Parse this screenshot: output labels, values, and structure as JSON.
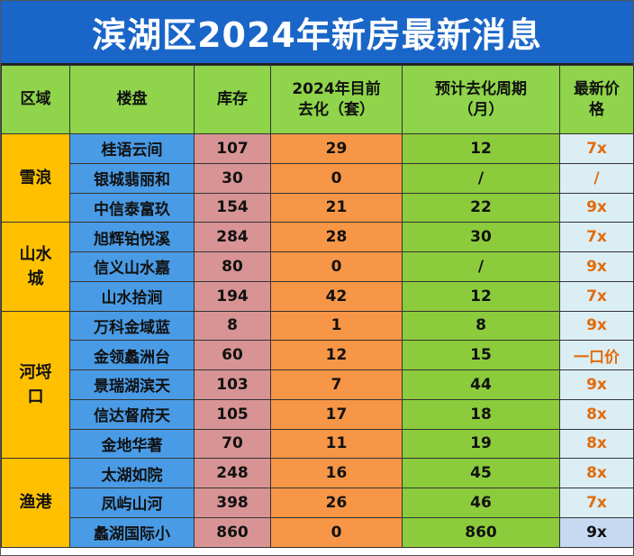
{
  "title": "滨湖区2024年新房最新消息",
  "headers": {
    "area": "区域",
    "project": "楼盘",
    "stock": "库存",
    "sold_line1": "2024年目前",
    "sold_line2": "去化（套）",
    "cycle_line1": "预计去化周期",
    "cycle_line2": "（月）",
    "price_line1": "最新价",
    "price_line2": "格"
  },
  "groups": [
    {
      "area_lines": [
        "雪浪"
      ],
      "rows": [
        {
          "project": "桂语云间",
          "stock": "107",
          "sold": "29",
          "cycle": "12",
          "price": "7x"
        },
        {
          "project": "银城翡丽和",
          "stock": "30",
          "sold": "0",
          "cycle": "/",
          "price": "/"
        },
        {
          "project": "中信泰富玖",
          "stock": "154",
          "sold": "21",
          "cycle": "22",
          "price": "9x"
        }
      ]
    },
    {
      "area_lines": [
        "山水",
        "城"
      ],
      "rows": [
        {
          "project": "旭辉铂悦溪",
          "stock": "284",
          "sold": "28",
          "cycle": "30",
          "price": "7x"
        },
        {
          "project": "信义山水嘉",
          "stock": "80",
          "sold": "0",
          "cycle": "/",
          "price": "9x"
        },
        {
          "project": "山水拾涧",
          "stock": "194",
          "sold": "42",
          "cycle": "12",
          "price": "7x"
        }
      ]
    },
    {
      "area_lines": [
        "河埒",
        "口"
      ],
      "rows": [
        {
          "project": "万科金域蓝",
          "stock": "8",
          "sold": "1",
          "cycle": "8",
          "price": "9x"
        },
        {
          "project": "金领蠡洲台",
          "stock": "60",
          "sold": "12",
          "cycle": "15",
          "price": "一口价"
        },
        {
          "project": "景瑞湖滨天",
          "stock": "103",
          "sold": "7",
          "cycle": "44",
          "price": "9x"
        },
        {
          "project": "信达督府天",
          "stock": "105",
          "sold": "17",
          "cycle": "18",
          "price": "8x"
        },
        {
          "project": "金地华著",
          "stock": "70",
          "sold": "11",
          "cycle": "19",
          "price": "8x"
        }
      ]
    },
    {
      "area_lines": [
        "渔港"
      ],
      "rows": [
        {
          "project": "太湖如院",
          "stock": "248",
          "sold": "16",
          "cycle": "45",
          "price": "8x"
        },
        {
          "project": "凤屿山河",
          "stock": "398",
          "sold": "26",
          "cycle": "46",
          "price": "7x"
        },
        {
          "project": "蠡湖国际小",
          "stock": "860",
          "sold": "0",
          "cycle": "860",
          "price": "9x"
        }
      ]
    }
  ]
}
